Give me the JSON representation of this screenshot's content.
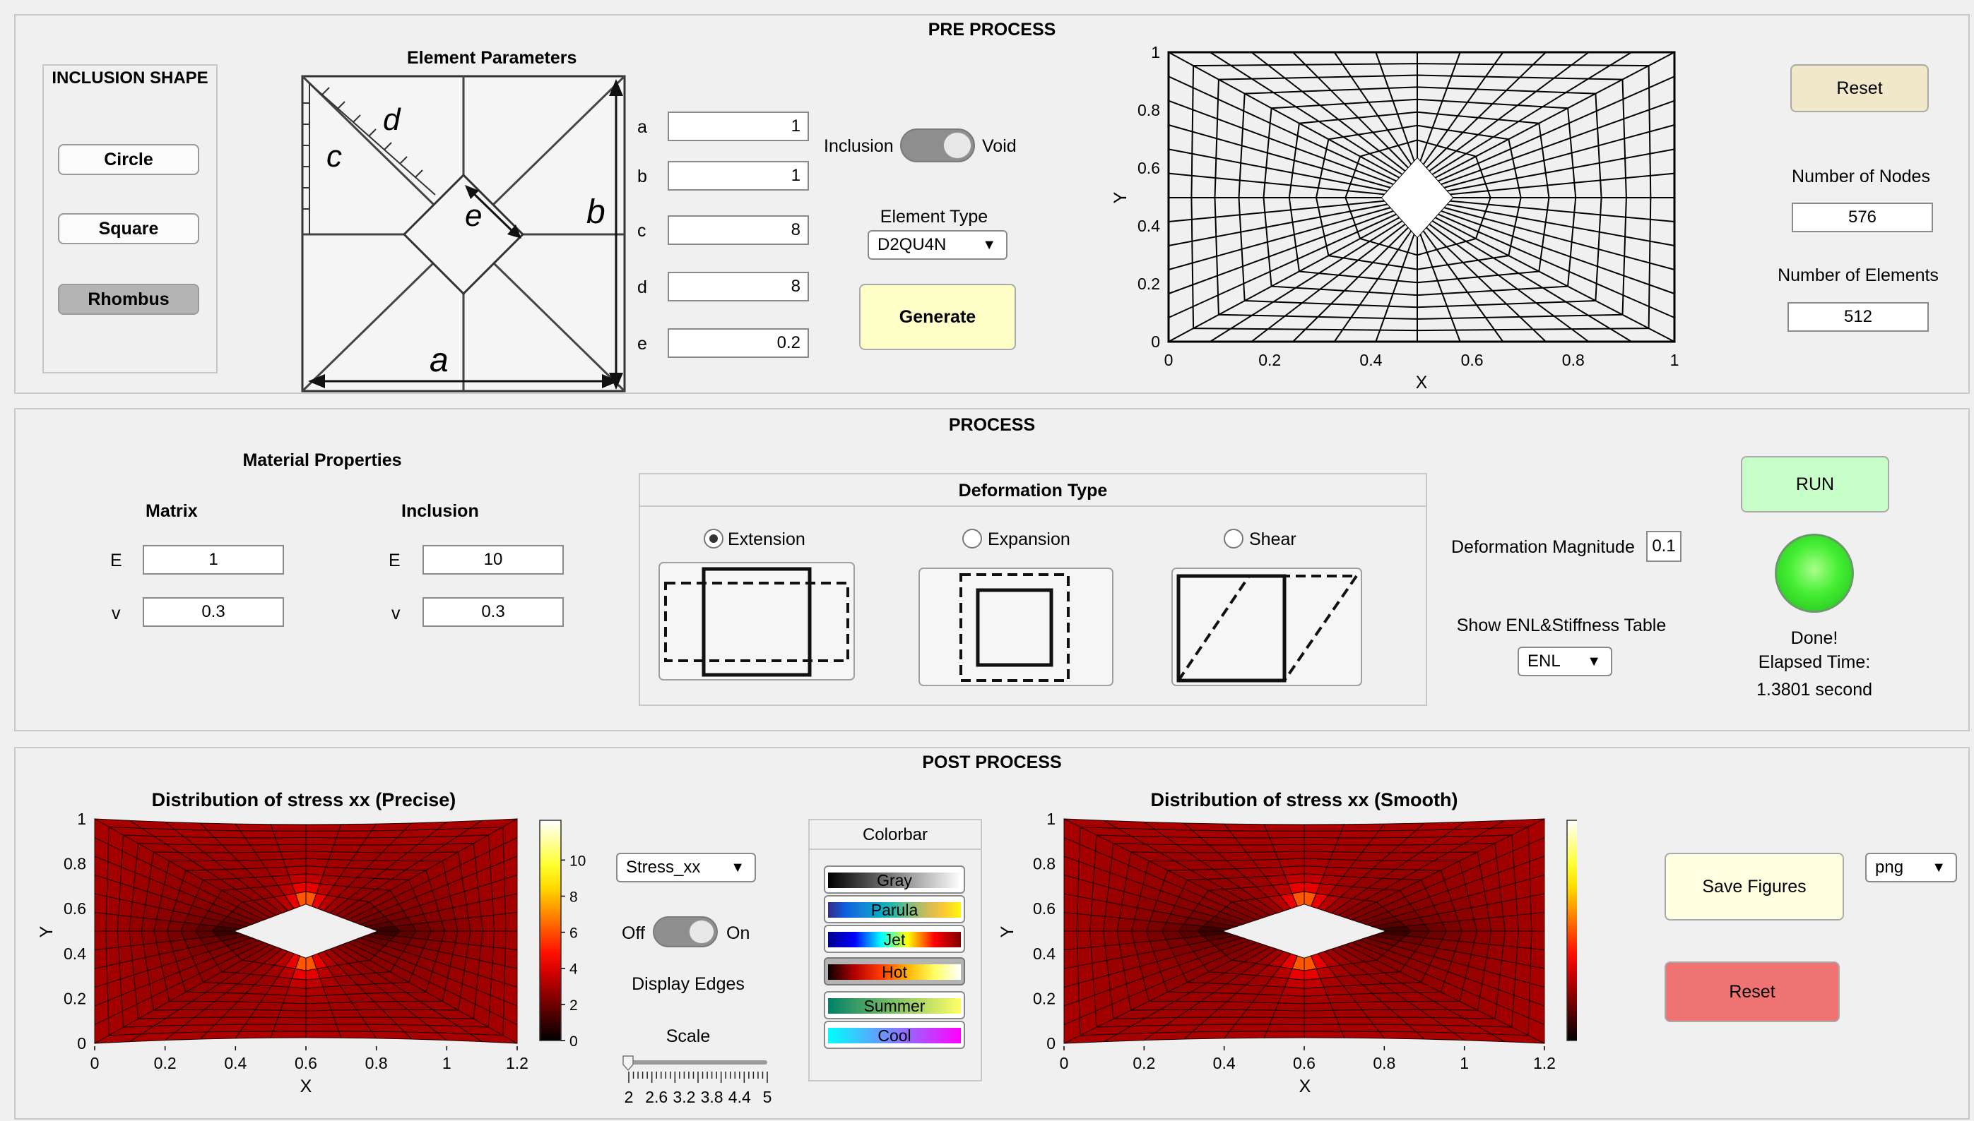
{
  "pre": {
    "title": "PRE PROCESS",
    "inclusion_shape": {
      "title": "INCLUSION SHAPE",
      "buttons": [
        "Circle",
        "Square",
        "Rhombus"
      ]
    },
    "element_params": {
      "title": "Element Parameters",
      "diagram_letters": {
        "a": "a",
        "b": "b",
        "c": "c",
        "d": "d",
        "e": "e"
      },
      "fields": [
        {
          "label": "a",
          "value": "1"
        },
        {
          "label": "b",
          "value": "1"
        },
        {
          "label": "c",
          "value": "8"
        },
        {
          "label": "d",
          "value": "8"
        },
        {
          "label": "e",
          "value": "0.2"
        }
      ]
    },
    "toggle": {
      "left": "Inclusion",
      "right": "Void",
      "state": "Void"
    },
    "element_type": {
      "label": "Element Type",
      "value": "D2QU4N"
    },
    "generate_label": "Generate",
    "mesh_plot": {
      "xlabel": "X",
      "ylabel": "Y",
      "xticks": [
        "0",
        "0.2",
        "0.4",
        "0.6",
        "0.8",
        "1"
      ],
      "yticks": [
        "0",
        "0.2",
        "0.4",
        "0.6",
        "0.8",
        "1"
      ]
    },
    "reset_label": "Reset",
    "nodes": {
      "label": "Number of Nodes",
      "value": "576"
    },
    "elements": {
      "label": "Number of Elements",
      "value": "512"
    }
  },
  "process": {
    "title": "PROCESS",
    "material": {
      "title": "Material Properties",
      "matrix_label": "Matrix",
      "inclusion_label": "Inclusion",
      "E_label": "E",
      "v_label": "v",
      "matrix_E": "1",
      "matrix_v": "0.3",
      "inclusion_E": "10",
      "inclusion_v": "0.3"
    },
    "deformation": {
      "title": "Deformation Type",
      "options": [
        "Extension",
        "Expansion",
        "Shear"
      ],
      "selected": "Extension"
    },
    "magnitude": {
      "label": "Deformation Magnitude",
      "value": "0.1"
    },
    "table": {
      "label": "Show ENL&Stiffness Table",
      "value": "ENL"
    },
    "run_label": "RUN",
    "lamp_color": "#33dd33",
    "status": {
      "line1": "Done!",
      "line2": "Elapsed Time:",
      "line3": "1.3801 second"
    }
  },
  "post": {
    "title": "POST PROCESS",
    "plot_left": {
      "title": "Distribution of stress xx (Precise)"
    },
    "plot_right": {
      "title": "Distribution of stress xx (Smooth)"
    },
    "plot_axes": {
      "xlabel": "X",
      "ylabel": "Y",
      "xticks": [
        "0",
        "0.2",
        "0.4",
        "0.6",
        "0.8",
        "1",
        "1.2"
      ],
      "yticks": [
        "0",
        "0.2",
        "0.4",
        "0.6",
        "0.8",
        "1"
      ],
      "cticks": [
        "0",
        "2",
        "4",
        "6",
        "8",
        "10"
      ]
    },
    "component_dropdown": "Stress_xx",
    "edges_toggle": {
      "off": "Off",
      "on": "On",
      "state": "Off"
    },
    "display_edges_label": "Display Edges",
    "scale": {
      "label": "Scale",
      "ticks": [
        "2",
        "2.6",
        "3.2",
        "3.8",
        "4.4",
        "5"
      ],
      "value": 2
    },
    "colorbar_panel": {
      "title": "Colorbar",
      "maps": [
        "Gray",
        "Parula",
        "Jet",
        "Hot",
        "Summer",
        "Cool"
      ],
      "selected": "Hot"
    },
    "save_label": "Save Figures",
    "format": "png",
    "reset_label": "Reset"
  }
}
